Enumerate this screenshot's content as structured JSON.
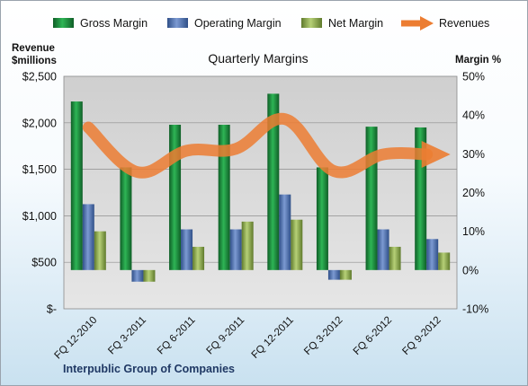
{
  "chart_data": {
    "type": "bar",
    "title": "Quarterly Margins",
    "categories": [
      "FQ 12-2010",
      "FQ 3-2011",
      "FQ 6-2011",
      "FQ 9-2011",
      "FQ 12-2011",
      "FQ 3-2012",
      "FQ 6-2012",
      "FQ 9-2012"
    ],
    "series": [
      {
        "name": "Gross Margin",
        "axis": "right",
        "unit": "%",
        "values": [
          43.5,
          26.5,
          37.5,
          37.5,
          45.5,
          26.5,
          37,
          36.8
        ]
      },
      {
        "name": "Operating Margin",
        "axis": "right",
        "unit": "%",
        "values": [
          17,
          -3,
          10.5,
          10.5,
          19.5,
          -2.5,
          10.5,
          8
        ]
      },
      {
        "name": "Net Margin",
        "axis": "right",
        "unit": "%",
        "values": [
          10,
          -3,
          6,
          12.5,
          13,
          -2.5,
          6,
          4.5
        ]
      },
      {
        "name": "Revenues",
        "type": "line",
        "smooth": true,
        "axis": "left",
        "unit": "$millions",
        "values": [
          1950,
          1470,
          1700,
          1720,
          2040,
          1480,
          1660,
          1660
        ]
      }
    ],
    "y_left": {
      "label": "Revenue\n$millions",
      "ticks": [
        "$2,500",
        "$2,000",
        "$1,500",
        "$1,000",
        "$500",
        "$-"
      ],
      "range": [
        0,
        2500
      ]
    },
    "y_right": {
      "label": "Margin %",
      "ticks": [
        "50%",
        "40%",
        "30%",
        "20%",
        "10%",
        "0%",
        "-10%"
      ],
      "range": [
        -10,
        50
      ]
    },
    "footer": "Interpublic Group of Companies",
    "legend_position": "top",
    "grid": true,
    "colors": {
      "gross": "#1a8a3c",
      "operating": "#4d71b4",
      "net": "#90b050",
      "revenue": "#ec7d32",
      "plot_bg": "#d6d6d6",
      "footer_text": "#1f3864"
    }
  }
}
